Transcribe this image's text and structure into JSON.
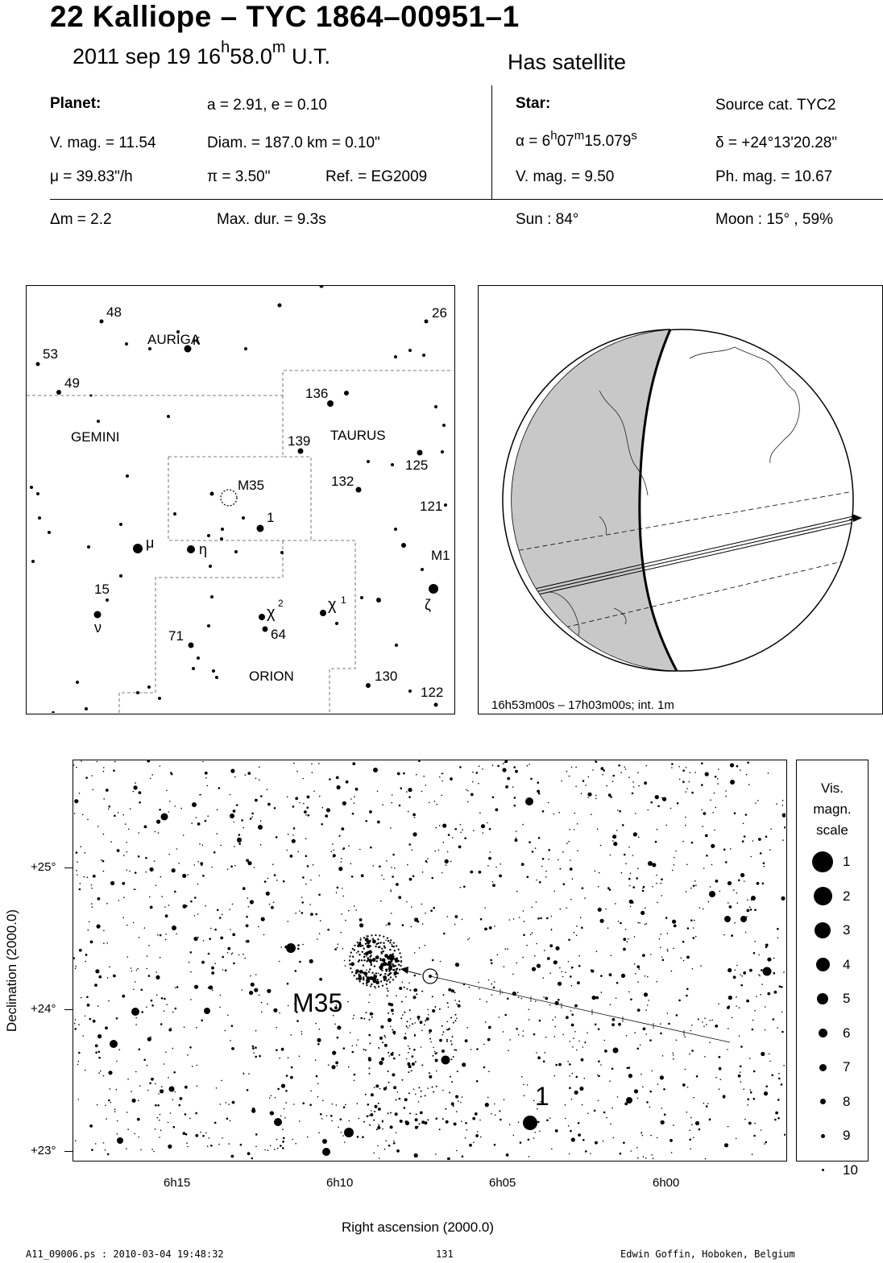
{
  "header": {
    "title": "22 Kalliope  –  TYC 1864–00951–1",
    "date": "2011 sep 19  16",
    "time_h_sup": "h",
    "time_min": "58.0",
    "time_m_sup": "m",
    "time_suffix": " U.T.",
    "satellite_note": "Has satellite"
  },
  "planet": {
    "heading": "Planet:",
    "orbit": "a = 2.91, e = 0.10",
    "vmag": "V. mag. = 11.54",
    "diam": "Diam. = 187.0 km = 0.10\"",
    "mu": "μ =  39.83\"/h",
    "pi": "π =  3.50\"",
    "ref": "Ref. = EG2009"
  },
  "star": {
    "heading": "Star:",
    "source": "Source cat.  TYC2",
    "alpha_prefix": "α =  6",
    "alpha_h": "h",
    "alpha_mid": "07",
    "alpha_m": "m",
    "alpha_sec": "15.079",
    "alpha_s": "s",
    "delta": "δ = +24°13'20.28\"",
    "vmag": "V. mag. =  9.50",
    "phmag": "Ph. mag. = 10.67"
  },
  "event": {
    "dm": "Δm = 2.2",
    "maxdur": "Max. dur. = 9.3s",
    "sun": "Sun :  84°",
    "moon": "Moon :  15° , 59%"
  },
  "finder": {
    "constellations": [
      "AURIGA",
      "GEMINI",
      "TAURUS",
      "ORION"
    ],
    "labels": [
      "48",
      "26",
      "κ",
      "53",
      "49",
      "136",
      "139",
      "125",
      "132",
      "M35",
      "121",
      "1",
      "μ",
      "η",
      "M1",
      "15",
      "ν",
      "χ",
      "2",
      "χ",
      "1",
      "ζ",
      "71",
      "64",
      "130",
      "122"
    ]
  },
  "globe": {
    "caption": "16h53m00s – 17h03m00s; int.  1m"
  },
  "detail": {
    "ylabel": "Declination (2000.0)",
    "xlabel": "Right ascension (2000.0)",
    "yticks": [
      "+25°",
      "+24°",
      "+23°"
    ],
    "xticks": [
      "6h15",
      "6h10",
      "6h05",
      "6h00"
    ],
    "cluster_label": "M35",
    "star_label": "1"
  },
  "legend": {
    "title": [
      "Vis.",
      "magn.",
      "scale"
    ],
    "items": [
      "1",
      "2",
      "3",
      "4",
      "5",
      "6",
      "7",
      "8",
      "9",
      "10"
    ]
  },
  "footer": {
    "file": "A11_09006.ps : 2010-03-04 19:48:32",
    "page": "131",
    "author": "Edwin Goffin, Hoboken, Belgium"
  }
}
